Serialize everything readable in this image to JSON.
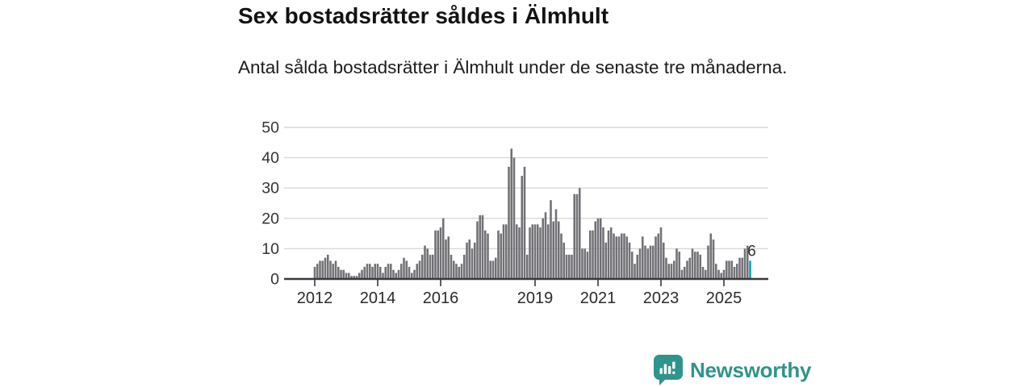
{
  "header": {
    "title": "Sex bostadsrätter såldes i Älmhult",
    "subtitle": "Antal sålda bostadsrätter i Älmhult under de senaste tre månaderna."
  },
  "branding": {
    "logo_name": "newsworthy-logo",
    "logo_text": "Newsworthy",
    "logo_color": "#2f948c"
  },
  "chart_data": {
    "type": "bar",
    "title": "Sex bostadsrätter såldes i Älmhult",
    "subtitle": "Antal sålda bostadsrätter i Älmhult under de senaste tre månaderna.",
    "frequency": "monthly",
    "x_start": "2012-01",
    "x_end": "2025-11",
    "ylim": [
      0,
      50
    ],
    "y_ticks": [
      0,
      10,
      20,
      30,
      40,
      50
    ],
    "x_tick_years": [
      2012,
      2014,
      2016,
      2019,
      2021,
      2023,
      2025
    ],
    "x_tick_labels": [
      "2012",
      "2014",
      "2016",
      "2019",
      "2021",
      "2023",
      "2025"
    ],
    "grid": true,
    "legend": false,
    "bar_color": "#707075",
    "grid_color": "#d9d9d9",
    "axis_color": "#39393d",
    "label_color": "#333333",
    "highlight": {
      "index": 166,
      "value": 6,
      "label": "6",
      "color": "#00a3a3"
    },
    "series": [
      {
        "name": "Antal sålda bostadsrätter",
        "values": [
          4,
          5,
          6,
          6,
          7,
          8,
          6,
          5,
          6,
          4,
          3,
          3,
          2,
          2,
          1,
          1,
          1,
          2,
          3,
          4,
          5,
          5,
          4,
          5,
          5,
          4,
          2,
          4,
          5,
          5,
          3,
          2,
          3,
          5,
          7,
          6,
          4,
          2,
          3,
          5,
          6,
          8,
          11,
          10,
          8,
          8,
          16,
          16,
          17,
          20,
          13,
          14,
          8,
          6,
          5,
          4,
          5,
          8,
          12,
          13,
          10,
          12,
          19,
          21,
          21,
          16,
          15,
          6,
          6,
          7,
          16,
          15,
          18,
          18,
          37,
          43,
          40,
          18,
          17,
          34,
          37,
          8,
          17,
          18,
          18,
          18,
          17,
          20,
          22,
          18,
          26,
          19,
          23,
          19,
          15,
          12,
          8,
          8,
          8,
          28,
          28,
          30,
          10,
          10,
          9,
          16,
          16,
          19,
          20,
          20,
          17,
          12,
          16,
          17,
          15,
          14,
          14,
          15,
          15,
          14,
          12,
          9,
          5,
          8,
          10,
          14,
          11,
          10,
          11,
          11,
          14,
          15,
          17,
          12,
          7,
          5,
          5,
          6,
          10,
          9,
          3,
          4,
          6,
          7,
          10,
          9,
          9,
          8,
          4,
          3,
          11,
          15,
          13,
          5,
          3,
          2,
          3,
          6,
          6,
          6,
          4,
          5,
          7,
          7,
          10,
          11,
          6
        ]
      }
    ]
  }
}
